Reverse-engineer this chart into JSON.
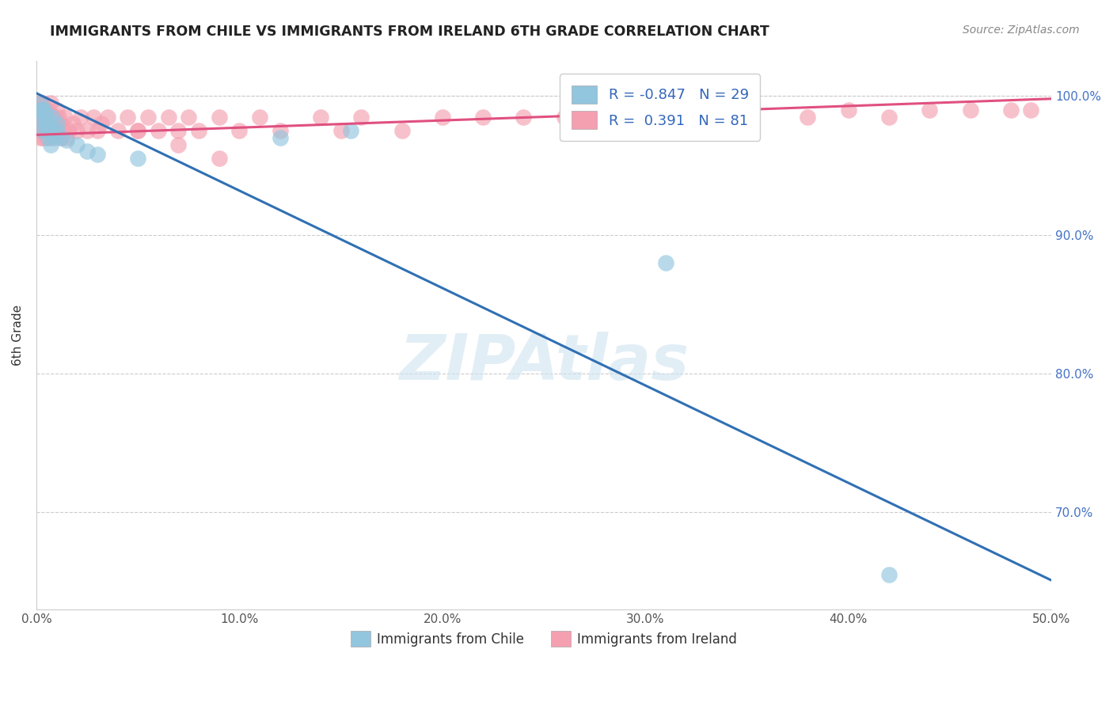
{
  "title": "IMMIGRANTS FROM CHILE VS IMMIGRANTS FROM IRELAND 6TH GRADE CORRELATION CHART",
  "source": "Source: ZipAtlas.com",
  "ylabel": "6th Grade",
  "xlim": [
    0.0,
    0.5
  ],
  "ylim": [
    0.63,
    1.025
  ],
  "xtick_labels": [
    "0.0%",
    "10.0%",
    "20.0%",
    "30.0%",
    "40.0%",
    "50.0%"
  ],
  "xtick_vals": [
    0.0,
    0.1,
    0.2,
    0.3,
    0.4,
    0.5
  ],
  "ytick_labels": [
    "70.0%",
    "80.0%",
    "90.0%",
    "100.0%"
  ],
  "ytick_vals": [
    0.7,
    0.8,
    0.9,
    1.0
  ],
  "chile_R": -0.847,
  "chile_N": 29,
  "ireland_R": 0.391,
  "ireland_N": 81,
  "chile_color": "#92c5de",
  "ireland_color": "#f4a0b0",
  "chile_line_color": "#3070b3",
  "ireland_line_color": "#e05080",
  "watermark": "ZIPAtlas",
  "chile_line_x0": 0.0,
  "chile_line_y0": 1.002,
  "chile_line_x1": 0.5,
  "chile_line_y1": 0.651,
  "ireland_line_x0": 0.0,
  "ireland_line_y0": 0.972,
  "ireland_line_x1": 0.5,
  "ireland_line_y1": 0.998,
  "chile_scatter_x": [
    0.001,
    0.002,
    0.002,
    0.003,
    0.003,
    0.003,
    0.004,
    0.004,
    0.005,
    0.005,
    0.006,
    0.006,
    0.007,
    0.007,
    0.008,
    0.008,
    0.009,
    0.01,
    0.01,
    0.012,
    0.015,
    0.02,
    0.025,
    0.03,
    0.05,
    0.12,
    0.155,
    0.31,
    0.42
  ],
  "chile_scatter_y": [
    0.99,
    0.995,
    0.985,
    0.99,
    0.975,
    0.988,
    0.98,
    0.99,
    0.985,
    0.975,
    0.98,
    0.97,
    0.975,
    0.965,
    0.975,
    0.985,
    0.97,
    0.975,
    0.98,
    0.97,
    0.968,
    0.965,
    0.96,
    0.958,
    0.955,
    0.97,
    0.975,
    0.88,
    0.655
  ],
  "ireland_scatter_x": [
    0.001,
    0.001,
    0.001,
    0.002,
    0.002,
    0.002,
    0.002,
    0.003,
    0.003,
    0.003,
    0.003,
    0.003,
    0.004,
    0.004,
    0.004,
    0.005,
    0.005,
    0.005,
    0.005,
    0.006,
    0.006,
    0.006,
    0.007,
    0.007,
    0.007,
    0.008,
    0.008,
    0.009,
    0.009,
    0.01,
    0.01,
    0.011,
    0.012,
    0.012,
    0.013,
    0.014,
    0.015,
    0.016,
    0.018,
    0.02,
    0.022,
    0.025,
    0.028,
    0.03,
    0.032,
    0.035,
    0.04,
    0.045,
    0.05,
    0.055,
    0.06,
    0.065,
    0.07,
    0.075,
    0.08,
    0.09,
    0.1,
    0.11,
    0.12,
    0.14,
    0.15,
    0.16,
    0.18,
    0.2,
    0.22,
    0.24,
    0.26,
    0.28,
    0.3,
    0.32,
    0.35,
    0.38,
    0.4,
    0.42,
    0.44,
    0.46,
    0.48,
    0.49,
    0.05,
    0.07,
    0.09
  ],
  "ireland_scatter_y": [
    0.975,
    0.985,
    0.995,
    0.97,
    0.98,
    0.99,
    0.995,
    0.975,
    0.985,
    0.99,
    0.995,
    0.97,
    0.975,
    0.98,
    0.99,
    0.975,
    0.985,
    0.99,
    0.97,
    0.975,
    0.98,
    0.99,
    0.975,
    0.985,
    0.995,
    0.97,
    0.98,
    0.975,
    0.985,
    0.975,
    0.99,
    0.985,
    0.97,
    0.98,
    0.975,
    0.985,
    0.97,
    0.975,
    0.98,
    0.975,
    0.985,
    0.975,
    0.985,
    0.975,
    0.98,
    0.985,
    0.975,
    0.985,
    0.975,
    0.985,
    0.975,
    0.985,
    0.975,
    0.985,
    0.975,
    0.985,
    0.975,
    0.985,
    0.975,
    0.985,
    0.975,
    0.985,
    0.975,
    0.985,
    0.985,
    0.985,
    0.985,
    0.985,
    0.985,
    0.985,
    0.985,
    0.985,
    0.99,
    0.985,
    0.99,
    0.99,
    0.99,
    0.99,
    0.975,
    0.965,
    0.955
  ]
}
